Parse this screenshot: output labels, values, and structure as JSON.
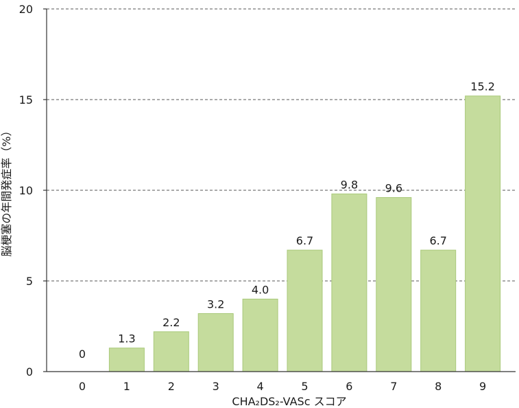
{
  "chart_data": {
    "type": "bar",
    "categories": [
      "0",
      "1",
      "2",
      "3",
      "4",
      "5",
      "6",
      "7",
      "8",
      "9"
    ],
    "values": [
      0,
      1.3,
      2.2,
      3.2,
      4.0,
      6.7,
      9.8,
      9.6,
      6.7,
      15.2
    ],
    "data_labels": [
      "0",
      "1.3",
      "2.2",
      "3.2",
      "4.0",
      "6.7",
      "9.8",
      "9.6",
      "6.7",
      "15.2"
    ],
    "title": "",
    "xlabel": "CHA₂DS₂-VASc スコア",
    "ylabel": "脳梗塞の年間発症率（%）",
    "ylim": [
      0,
      20
    ],
    "yticks": [
      0,
      5,
      10,
      15,
      20
    ],
    "grid": "horizontal dashed",
    "colors": {
      "bar_fill": "#c5dc9d",
      "bar_stroke": "#a9c97a",
      "axis": "#333333",
      "grid": "#555555"
    }
  }
}
